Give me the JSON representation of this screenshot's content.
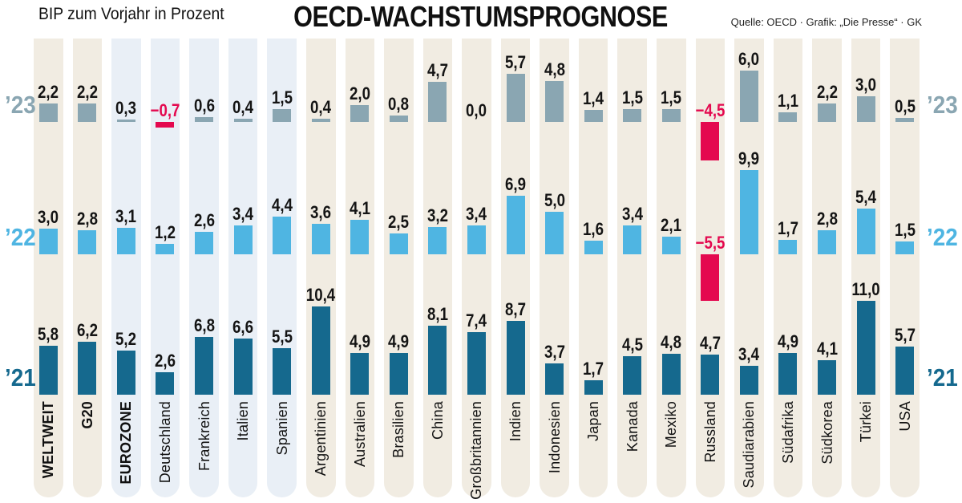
{
  "header": {
    "subtitle": "BIP zum Vorjahr in Prozent",
    "title": "OECD-WACHSTUMSPROGNOSE",
    "source": "Quelle: OECD · Grafik: „Die Presse“ · GK"
  },
  "chart_data": {
    "type": "bar",
    "title": "OECD-WACHSTUMSPROGNOSE",
    "subtitle": "BIP zum Vorjahr in Prozent",
    "source": "Quelle: OECD · Grafik: „Die Presse“ · GK",
    "unit": "BIP-Wachstum zum Vorjahr in Prozent",
    "legend_position": "row labels left and right of each bar band",
    "grid": false,
    "decimal_separator": ",",
    "categories": [
      "WELTWEIT",
      "G20",
      "EUROZONE",
      "Deutschland",
      "Frankreich",
      "Italien",
      "Spanien",
      "Argentinien",
      "Australien",
      "Brasilien",
      "China",
      "Großbritannien",
      "Indien",
      "Indonesien",
      "Japan",
      "Kanada",
      "Mexiko",
      "Russland",
      "Saudiarabien",
      "Südafrika",
      "Südkorea",
      "Türkei",
      "USA"
    ],
    "bold_categories": [
      "WELTWEIT",
      "G20",
      "EUROZONE"
    ],
    "highlighted_background_categories": [
      "EUROZONE",
      "Deutschland",
      "Frankreich",
      "Italien",
      "Spanien"
    ],
    "series": [
      {
        "name": "’23",
        "color": "#8aa6b2",
        "values": [
          2.2,
          2.2,
          0.3,
          -0.7,
          0.6,
          0.4,
          1.5,
          0.4,
          2.0,
          0.8,
          4.7,
          0.0,
          5.7,
          4.8,
          1.4,
          1.5,
          1.5,
          -4.5,
          6.0,
          1.1,
          2.2,
          3.0,
          0.5
        ]
      },
      {
        "name": "’22",
        "color": "#4fb5e2",
        "values": [
          3.0,
          2.8,
          3.1,
          1.2,
          2.6,
          3.4,
          4.4,
          3.6,
          4.1,
          2.5,
          3.2,
          3.4,
          6.9,
          5.0,
          1.6,
          3.4,
          2.1,
          -5.5,
          9.9,
          1.7,
          2.8,
          5.4,
          1.5
        ]
      },
      {
        "name": "’21",
        "color": "#15698e",
        "values": [
          5.8,
          6.2,
          5.2,
          2.6,
          6.8,
          6.6,
          5.5,
          10.4,
          4.9,
          4.9,
          8.1,
          7.4,
          8.7,
          3.7,
          1.7,
          4.5,
          4.8,
          4.7,
          3.4,
          4.9,
          4.1,
          11.0,
          5.7
        ]
      }
    ],
    "negative_color": "#e4094f",
    "column_background": "#f1ece2",
    "column_background_highlight": "#e9eff6",
    "value_label_color": "#141414"
  }
}
